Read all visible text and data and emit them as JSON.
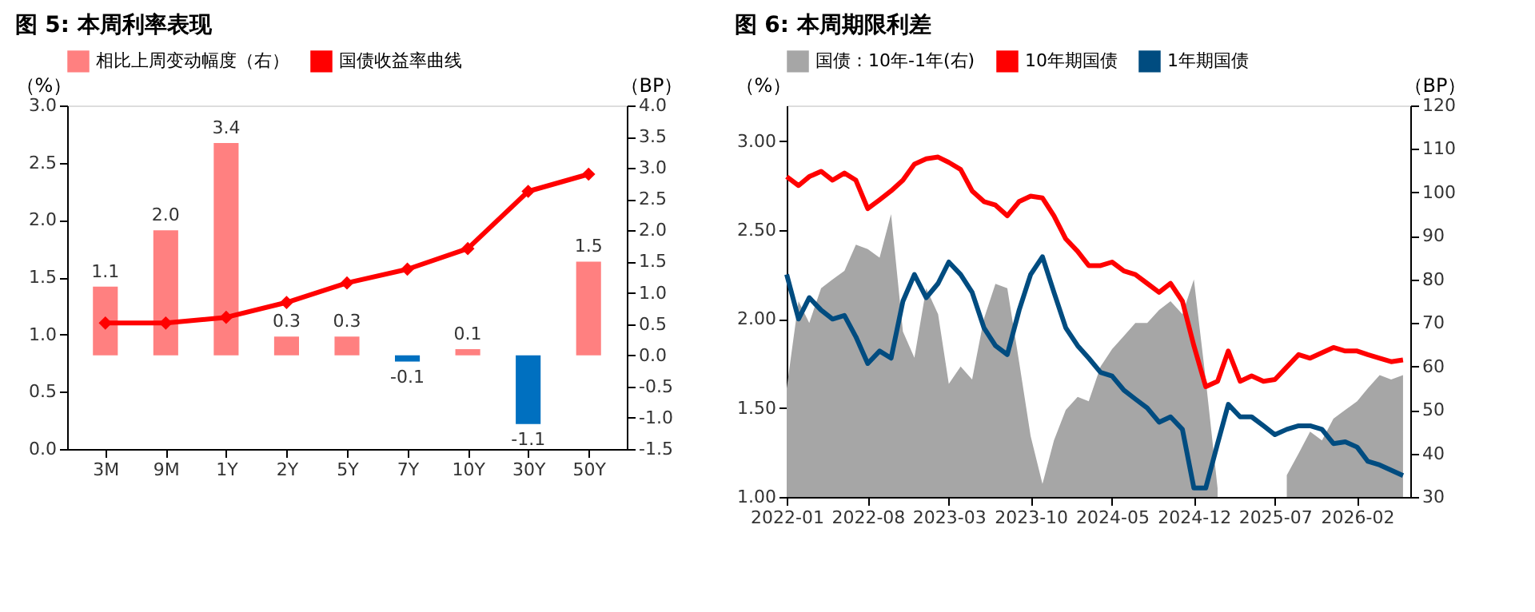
{
  "chart_data": [
    {
      "type": "bar",
      "title": "图 5: 本周利率表现",
      "ylabel": "（%）",
      "y2label": "（BP）",
      "legend": "top",
      "grid": false,
      "categories": [
        "3M",
        "9M",
        "1Y",
        "2Y",
        "5Y",
        "7Y",
        "10Y",
        "30Y",
        "50Y"
      ],
      "ylim": [
        0,
        3.0
      ],
      "yticks": [
        {
          "value": 0,
          "label": "0.0"
        },
        {
          "value": 0.5,
          "label": "0.5"
        },
        {
          "value": 1,
          "label": "1.0"
        },
        {
          "value": 1.5,
          "label": "1.5"
        },
        {
          "value": 2,
          "label": "2.0"
        },
        {
          "value": 2.5,
          "label": "2.5"
        },
        {
          "value": 3,
          "label": "3.0"
        }
      ],
      "y2lim": [
        -1.5,
        4.0
      ],
      "y2ticks": [
        -1.5,
        {
          "value": -1,
          "label": "-1.0"
        },
        -0.5,
        {
          "value": 0,
          "label": "0.0"
        },
        0.5,
        {
          "value": 1,
          "label": "1.0"
        },
        1.5,
        {
          "value": 2,
          "label": "2.0"
        },
        2.5,
        {
          "value": 3,
          "label": "3.0"
        },
        3.5,
        {
          "value": 4,
          "label": "4.0"
        }
      ],
      "series": [
        {
          "name": "相比上周变动幅度（右）",
          "axis": "y2",
          "value_labels": [
            "1.1",
            "2.0",
            "3.4",
            "0.3",
            "0.3",
            "-0.1",
            "0.1",
            "-1.1",
            "1.5"
          ],
          "color": "#ff8080",
          "colors": [
            "#ff8080",
            "#ff8080",
            "#ff8080",
            "#ff8080",
            "#ff8080",
            "#0070c0",
            "#ff8080",
            "#0070c0",
            "#ff8080"
          ],
          "values": [
            1.1,
            2.0,
            3.4,
            0.3,
            0.3,
            -0.1,
            0.1,
            -1.1,
            1.5
          ]
        },
        {
          "name": "国债收益率曲线",
          "type": "line",
          "color": "#ff0000",
          "marker": "diamond",
          "values": [
            1.1,
            1.1,
            1.15,
            1.28,
            1.45,
            1.57,
            1.75,
            2.25,
            2.4
          ]
        }
      ]
    },
    {
      "type": "line",
      "title": "图 6: 本周期限利差",
      "ylabel": "（%）",
      "y2label": "（BP）",
      "legend": "top",
      "grid": false,
      "x": [
        "2022-01",
        "2022-02",
        "2022-03",
        "2022-04",
        "2022-05",
        "2022-06",
        "2022-07",
        "2022-08",
        "2022-09",
        "2022-10",
        "2022-11",
        "2022-12",
        "2023-01",
        "2023-02",
        "2023-03",
        "2023-04",
        "2023-05",
        "2023-06",
        "2023-07",
        "2023-08",
        "2023-09",
        "2023-10",
        "2023-11",
        "2023-12",
        "2024-01",
        "2024-02",
        "2024-03",
        "2024-04",
        "2024-05",
        "2024-06",
        "2024-07",
        "2024-08",
        "2024-09",
        "2024-10",
        "2024-11",
        "2024-12",
        "2025-01",
        "2025-02",
        "2025-03",
        "2025-04",
        "2025-05",
        "2025-06",
        "2025-07",
        "2025-08",
        "2025-09",
        "2025-10",
        "2025-11",
        "2025-12",
        "2026-01",
        "2026-02",
        "2026-03",
        "2026-04",
        "2026-05",
        "2026-06"
      ],
      "xlim": [
        "2022-01",
        "2026-06-20"
      ],
      "xticks": [
        "2022-01",
        "2022-08",
        "2023-03",
        "2023-10",
        "2024-05",
        "2024-12",
        "2025-07",
        "2026-02"
      ],
      "ylim": [
        1.0,
        3.2
      ],
      "yticks": [
        {
          "value": 1,
          "label": "1.00"
        },
        {
          "value": 1.5,
          "label": "1.50"
        },
        {
          "value": 2,
          "label": "2.00"
        },
        {
          "value": 2.5,
          "label": "2.50"
        },
        {
          "value": 3,
          "label": "3.00"
        }
      ],
      "y2lim": [
        30,
        120
      ],
      "y2ticks": [
        30,
        40,
        50,
        60,
        70,
        80,
        90,
        100,
        110,
        120
      ],
      "series": [
        {
          "name": "国债：10年-1年(右)",
          "type": "area",
          "axis": "y2",
          "color": "#a6a6a6",
          "values": [
            55,
            75,
            70,
            78,
            80,
            82,
            88,
            87,
            85,
            95,
            68,
            62,
            78,
            72,
            56,
            60,
            57,
            71,
            79,
            78,
            61,
            44,
            33,
            43,
            50,
            53,
            52,
            60,
            64,
            67,
            70,
            70,
            73,
            75,
            72,
            80,
            57,
            32,
            null,
            null,
            null,
            null,
            null,
            35,
            40,
            45,
            43,
            48,
            50,
            52,
            55,
            58,
            57,
            58
          ]
        },
        {
          "name": "10年期国债",
          "color": "#ff0000",
          "values": [
            2.8,
            2.75,
            2.8,
            2.83,
            2.78,
            2.82,
            2.78,
            2.62,
            2.67,
            2.72,
            2.78,
            2.87,
            2.9,
            2.91,
            2.88,
            2.84,
            2.72,
            2.66,
            2.64,
            2.58,
            2.66,
            2.69,
            2.68,
            2.58,
            2.45,
            2.38,
            2.3,
            2.3,
            2.32,
            2.27,
            2.25,
            2.2,
            2.15,
            2.2,
            2.1,
            1.85,
            1.62,
            1.65,
            1.82,
            1.65,
            1.68,
            1.65,
            1.66,
            1.73,
            1.8,
            1.78,
            1.81,
            1.84,
            1.82,
            1.82,
            1.8,
            1.78,
            1.76,
            1.77
          ]
        },
        {
          "name": "1年期国债",
          "color": "#004c80",
          "values": [
            2.25,
            2.0,
            2.12,
            2.05,
            2.0,
            2.02,
            1.9,
            1.75,
            1.82,
            1.78,
            2.1,
            2.25,
            2.12,
            2.2,
            2.32,
            2.25,
            2.15,
            1.95,
            1.85,
            1.8,
            2.05,
            2.25,
            2.35,
            2.15,
            1.95,
            1.85,
            1.78,
            1.7,
            1.68,
            1.6,
            1.55,
            1.5,
            1.42,
            1.45,
            1.38,
            1.05,
            1.05,
            1.3,
            1.52,
            1.45,
            1.45,
            1.4,
            1.35,
            1.38,
            1.4,
            1.4,
            1.38,
            1.3,
            1.31,
            1.28,
            1.2,
            1.18,
            1.15,
            1.12
          ]
        }
      ]
    }
  ]
}
